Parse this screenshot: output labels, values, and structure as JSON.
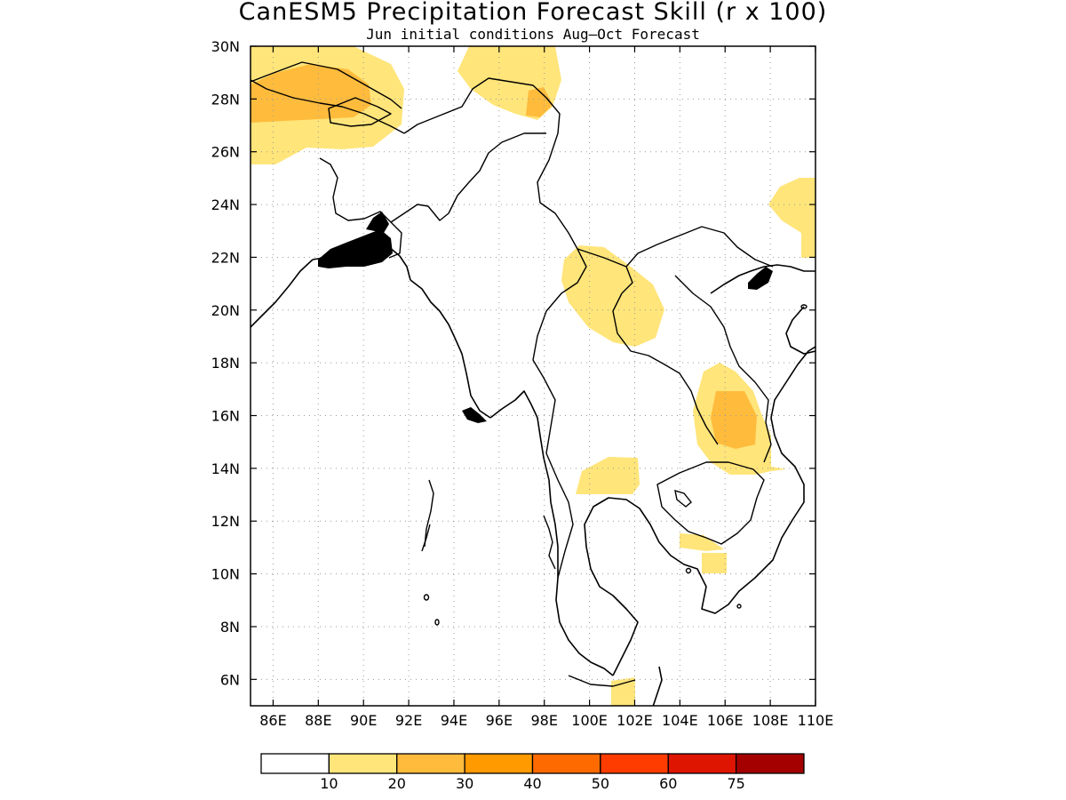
{
  "title": "CanESM5 Precipitation Forecast Skill (r x 100)",
  "subtitle": "Jun initial conditions  Aug–Oct Forecast",
  "map": {
    "lon_range": [
      85,
      110
    ],
    "lat_range": [
      5,
      30
    ],
    "lon_ticks": [
      "86E",
      "88E",
      "90E",
      "92E",
      "94E",
      "96E",
      "98E",
      "100E",
      "102E",
      "104E",
      "106E",
      "108E",
      "110E"
    ],
    "lat_ticks": [
      "6N",
      "8N",
      "10N",
      "12N",
      "14N",
      "16N",
      "18N",
      "20N",
      "22N",
      "24N",
      "26N",
      "28N",
      "30N"
    ],
    "grid": "dotted"
  },
  "colorbar": {
    "bins": [
      {
        "label": "",
        "color": "#ffffff"
      },
      {
        "label": "10",
        "color": "#ffe57a"
      },
      {
        "label": "20",
        "color": "#ffbb3c"
      },
      {
        "label": "30",
        "color": "#ff9a00"
      },
      {
        "label": "40",
        "color": "#ff6a00"
      },
      {
        "label": "50",
        "color": "#ff3c00"
      },
      {
        "label": "60",
        "color": "#de1500"
      },
      {
        "label": "75",
        "color": "#a40000"
      }
    ]
  },
  "skill_levels": {
    "low": "#ffe57a",
    "mid": "#ffbb3c"
  }
}
